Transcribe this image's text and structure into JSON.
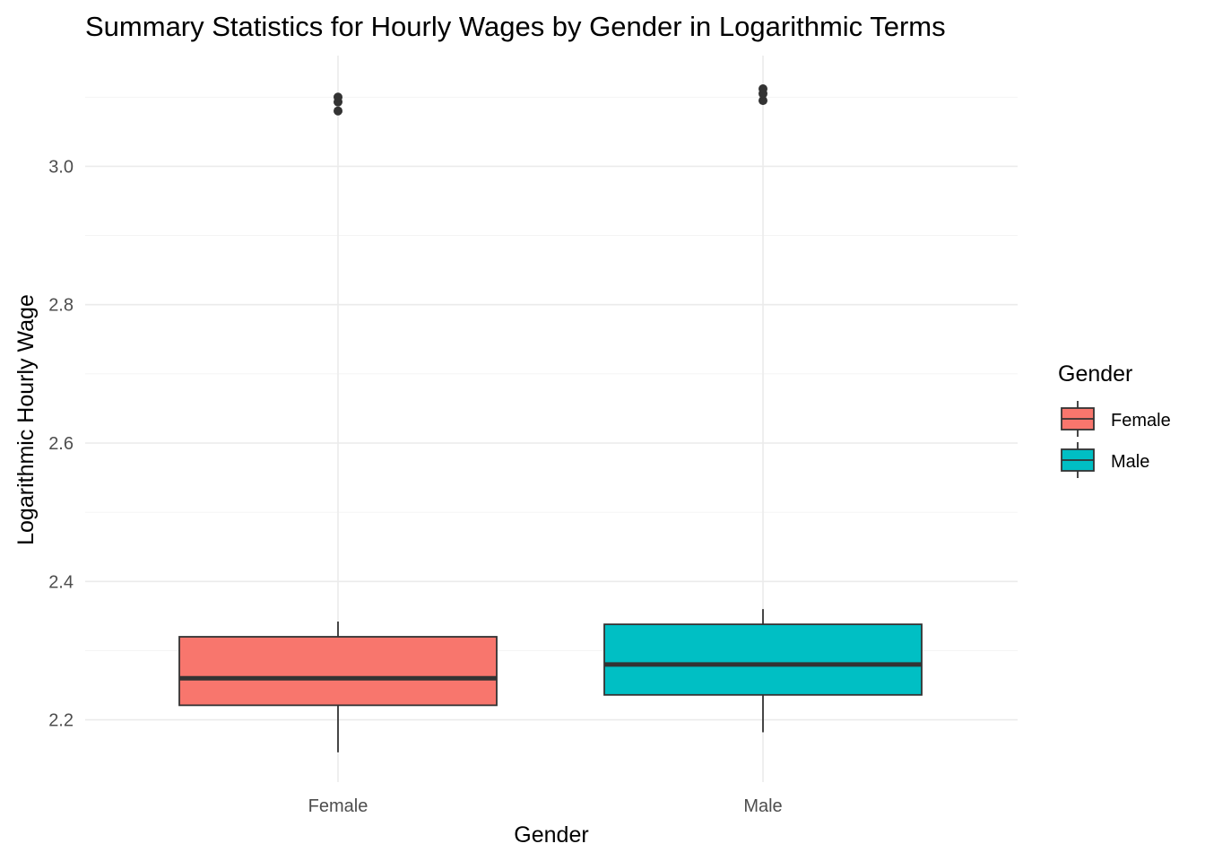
{
  "chart_data": {
    "type": "boxplot",
    "title": "Summary Statistics for Hourly Wages by Gender in Logarithmic Terms",
    "xlabel": "Gender",
    "ylabel": "Logarithmic Hourly Wage",
    "categories": [
      "Female",
      "Male"
    ],
    "ylim": [
      2.11,
      3.16
    ],
    "y_ticks": [
      2.2,
      2.4,
      2.6,
      2.8,
      3.0
    ],
    "y_tick_labels": [
      "2.2",
      "2.4",
      "2.6",
      "2.8",
      "3.0"
    ],
    "grid": true,
    "legend": {
      "title": "Gender",
      "position": "right",
      "entries": [
        "Female",
        "Male"
      ]
    },
    "series": [
      {
        "name": "Female",
        "color": "#F8766D",
        "whisker_low": 2.153,
        "q1": 2.221,
        "median": 2.26,
        "q3": 2.32,
        "whisker_high": 2.342,
        "outliers": [
          3.08,
          3.093,
          3.1
        ]
      },
      {
        "name": "Male",
        "color": "#00BFC4",
        "whisker_low": 2.182,
        "q1": 2.236,
        "median": 2.28,
        "q3": 2.338,
        "whisker_high": 2.36,
        "outliers": [
          3.095,
          3.105,
          3.112
        ]
      }
    ]
  }
}
